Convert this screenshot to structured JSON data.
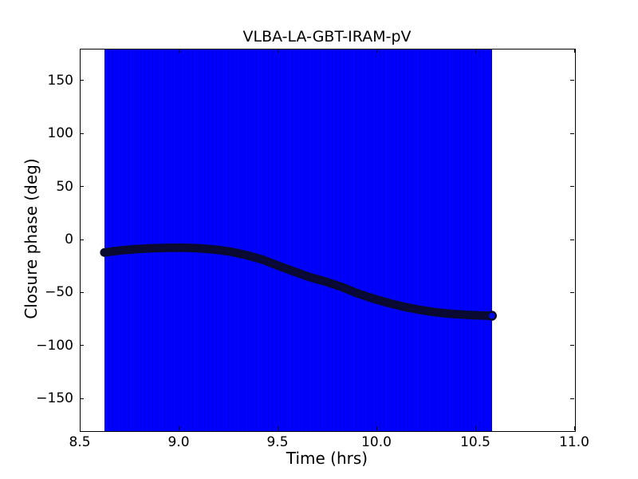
{
  "title": "VLBA-LA-GBT-IRAM-pV",
  "axes": {
    "xlabel": "Time (hrs)",
    "ylabel": "Closure phase (deg)",
    "x_ticks": [
      {
        "v": 8.5,
        "label": "8.5"
      },
      {
        "v": 9.0,
        "label": "9.0"
      },
      {
        "v": 9.5,
        "label": "9.5"
      },
      {
        "v": 10.0,
        "label": "10.0"
      },
      {
        "v": 10.5,
        "label": "10.5"
      },
      {
        "v": 11.0,
        "label": "11.0"
      }
    ],
    "y_ticks": [
      {
        "v": 150,
        "label": "150"
      },
      {
        "v": 100,
        "label": "100"
      },
      {
        "v": 50,
        "label": "50"
      },
      {
        "v": 0,
        "label": "0"
      },
      {
        "v": -50,
        "label": "−50"
      },
      {
        "v": -100,
        "label": "−100"
      },
      {
        "v": -150,
        "label": "−150"
      }
    ]
  },
  "chart_data": {
    "type": "scatter",
    "title": "VLBA-LA-GBT-IRAM-pV",
    "xlabel": "Time (hrs)",
    "ylabel": "Closure phase (deg)",
    "xlim": [
      8.5,
      11.0
    ],
    "ylim": [
      -180,
      180
    ],
    "grid": false,
    "error_band": {
      "x_start": 8.62,
      "x_end": 10.58,
      "y_min": -180,
      "y_max": 180,
      "color": "#0000ff",
      "note": "error bars of every point span the full +/-180 deg range, forming a solid blue block"
    },
    "series": [
      {
        "name": "closure phase vs time",
        "marker": "circle",
        "marker_face_color": "#0008ee",
        "marker_edge_color": "#0a0a2e",
        "points": [
          [
            8.62,
            -11.5
          ],
          [
            8.7,
            -9.6
          ],
          [
            8.78,
            -8.3
          ],
          [
            8.86,
            -7.5
          ],
          [
            8.94,
            -7.1
          ],
          [
            9.02,
            -7.0
          ],
          [
            9.1,
            -7.5
          ],
          [
            9.18,
            -8.7
          ],
          [
            9.26,
            -10.8
          ],
          [
            9.34,
            -14.0
          ],
          [
            9.42,
            -18.2
          ],
          [
            9.5,
            -24.0
          ],
          [
            9.58,
            -29.5
          ],
          [
            9.66,
            -34.8
          ],
          [
            9.74,
            -39.0
          ],
          [
            9.82,
            -44.0
          ],
          [
            9.9,
            -50.0
          ],
          [
            9.98,
            -55.0
          ],
          [
            10.06,
            -59.3
          ],
          [
            10.14,
            -62.9
          ],
          [
            10.22,
            -65.8
          ],
          [
            10.3,
            -68.0
          ],
          [
            10.38,
            -69.5
          ],
          [
            10.46,
            -70.4
          ],
          [
            10.52,
            -70.9
          ],
          [
            10.58,
            -71.2
          ]
        ]
      }
    ]
  }
}
